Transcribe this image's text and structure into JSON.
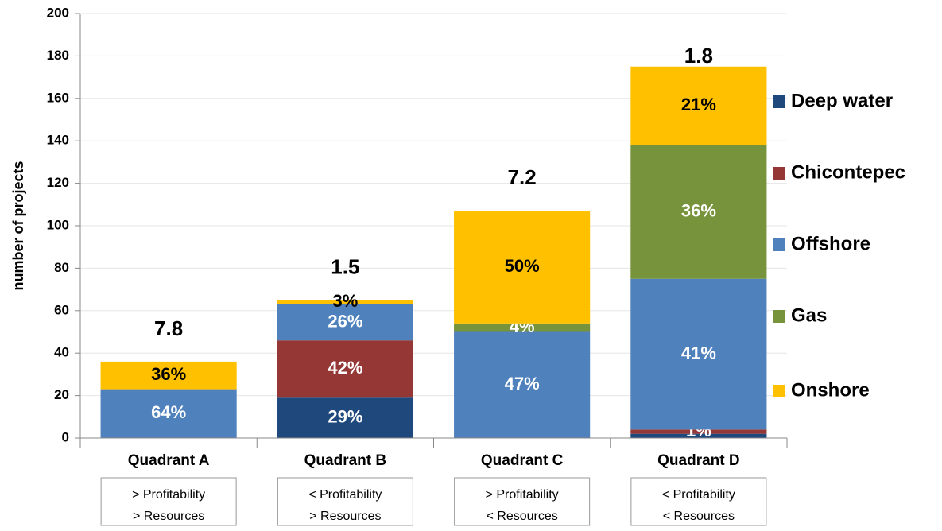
{
  "chart_data": {
    "type": "stacked_bar",
    "y_label": "number of projects",
    "categories": [
      "Quadrant A",
      "Quadrant B",
      "Quadrant C",
      "Quadrant D"
    ],
    "category_notes": [
      [
        "> Profitability",
        "> Resources"
      ],
      [
        "< Profitability",
        "> Resources"
      ],
      [
        "> Profitability",
        "< Resources"
      ],
      [
        "< Profitability",
        "< Resources"
      ]
    ],
    "top_labels": [
      "7.8",
      "1.5",
      "7.2",
      "1.8"
    ],
    "series": [
      {
        "name": "Deep water",
        "color": "#1f497d",
        "label_color": "#ffffff",
        "values": [
          0,
          19,
          0,
          2
        ],
        "share_labels": [
          null,
          "29%",
          null,
          null
        ]
      },
      {
        "name": "Chicontepec",
        "color": "#953735",
        "label_color": "#ffffff",
        "values": [
          0,
          27,
          0,
          2
        ],
        "share_labels": [
          null,
          "42%",
          null,
          "1%"
        ]
      },
      {
        "name": "Offshore",
        "color": "#4f81bd",
        "label_color": "#ffffff",
        "values": [
          23,
          17,
          50,
          71
        ],
        "share_labels": [
          "64%",
          "26%",
          "47%",
          "41%"
        ]
      },
      {
        "name": "Gas",
        "color": "#77933c",
        "label_color": "#ffffff",
        "values": [
          0,
          0,
          4,
          63
        ],
        "share_labels": [
          null,
          null,
          "4%",
          "36%"
        ]
      },
      {
        "name": "Onshore",
        "color": "#ffc000",
        "label_color": "#000000",
        "values": [
          13,
          2,
          53,
          37
        ],
        "share_labels": [
          "36%",
          "3%",
          "50%",
          "21%"
        ]
      }
    ],
    "ylim": [
      0,
      200
    ],
    "yticks": [
      0,
      20,
      40,
      60,
      80,
      100,
      120,
      140,
      160,
      180,
      200
    ],
    "grid": true,
    "legend": "right"
  }
}
